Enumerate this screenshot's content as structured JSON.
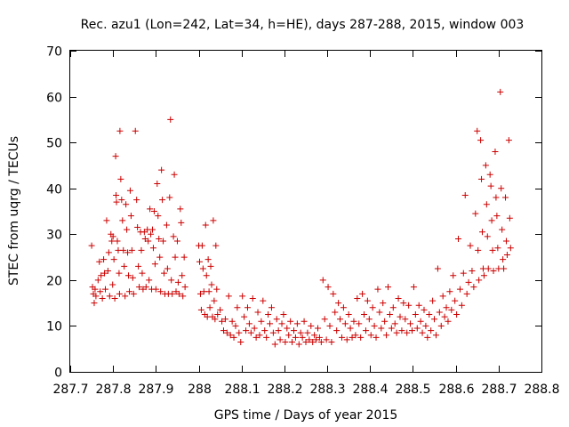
{
  "chart_data": {
    "type": "scatter",
    "title": "Rec. azu1 (Lon=242, Lat=34, h=HE), days 287-288, 2015, window 003",
    "xlabel": "GPS time / Days of year 2015",
    "ylabel": "STEC from uqrg / TECUs",
    "xlim": [
      287.7,
      288.8
    ],
    "ylim": [
      0,
      70
    ],
    "xticks": [
      "287.7",
      "287.8",
      "287.9",
      "288",
      "288.1",
      "288.2",
      "288.3",
      "288.4",
      "288.5",
      "288.6",
      "288.7",
      "288.8"
    ],
    "yticks": [
      "0",
      "10",
      "20",
      "30",
      "40",
      "50",
      "60",
      "70"
    ],
    "grid": false,
    "legend": "none",
    "marker": "plus",
    "series_color": "#cc0000",
    "points": [
      [
        287.75,
        27.5
      ],
      [
        287.752,
        18.5
      ],
      [
        287.754,
        17.0
      ],
      [
        287.756,
        15.0
      ],
      [
        287.758,
        18.0
      ],
      [
        287.76,
        16.5
      ],
      [
        287.765,
        20.0
      ],
      [
        287.768,
        24.0
      ],
      [
        287.77,
        17.5
      ],
      [
        287.772,
        21.0
      ],
      [
        287.775,
        16.0
      ],
      [
        287.778,
        24.5
      ],
      [
        287.78,
        21.5
      ],
      [
        287.782,
        18.0
      ],
      [
        287.785,
        33.0
      ],
      [
        287.788,
        22.0
      ],
      [
        287.79,
        26.0
      ],
      [
        287.792,
        16.5
      ],
      [
        287.795,
        30.0
      ],
      [
        287.797,
        28.5
      ],
      [
        287.799,
        19.0
      ],
      [
        287.8,
        29.5
      ],
      [
        287.802,
        24.5
      ],
      [
        287.804,
        16.0
      ],
      [
        287.806,
        47.0
      ],
      [
        287.807,
        38.5
      ],
      [
        287.808,
        37.0
      ],
      [
        287.81,
        28.5
      ],
      [
        287.812,
        26.5
      ],
      [
        287.814,
        21.5
      ],
      [
        287.815,
        17.0
      ],
      [
        287.816,
        52.5
      ],
      [
        287.818,
        42.0
      ],
      [
        287.82,
        37.5
      ],
      [
        287.822,
        33.0
      ],
      [
        287.824,
        26.5
      ],
      [
        287.826,
        23.0
      ],
      [
        287.828,
        16.5
      ],
      [
        287.83,
        36.5
      ],
      [
        287.832,
        31.0
      ],
      [
        287.834,
        26.0
      ],
      [
        287.836,
        21.0
      ],
      [
        287.838,
        17.5
      ],
      [
        287.84,
        39.5
      ],
      [
        287.842,
        34.0
      ],
      [
        287.844,
        26.5
      ],
      [
        287.846,
        20.5
      ],
      [
        287.848,
        17.0
      ],
      [
        287.852,
        52.5
      ],
      [
        287.855,
        37.5
      ],
      [
        287.857,
        31.5
      ],
      [
        287.859,
        23.0
      ],
      [
        287.861,
        18.5
      ],
      [
        287.864,
        30.5
      ],
      [
        287.866,
        26.5
      ],
      [
        287.868,
        21.5
      ],
      [
        287.87,
        18.0
      ],
      [
        287.873,
        30.5
      ],
      [
        287.875,
        29.0
      ],
      [
        287.877,
        18.5
      ],
      [
        287.88,
        31.0
      ],
      [
        287.882,
        28.5
      ],
      [
        287.884,
        20.0
      ],
      [
        287.886,
        35.5
      ],
      [
        287.888,
        30.0
      ],
      [
        287.89,
        18.0
      ],
      [
        287.892,
        31.0
      ],
      [
        287.894,
        27.0
      ],
      [
        287.896,
        35.0
      ],
      [
        287.898,
        23.5
      ],
      [
        287.9,
        18.0
      ],
      [
        287.903,
        41.0
      ],
      [
        287.905,
        34.0
      ],
      [
        287.907,
        29.0
      ],
      [
        287.909,
        25.0
      ],
      [
        287.911,
        17.5
      ],
      [
        287.913,
        44.0
      ],
      [
        287.915,
        37.5
      ],
      [
        287.917,
        28.5
      ],
      [
        287.919,
        21.5
      ],
      [
        287.921,
        17.0
      ],
      [
        287.925,
        32.0
      ],
      [
        287.927,
        22.5
      ],
      [
        287.929,
        17.0
      ],
      [
        287.932,
        38.0
      ],
      [
        287.934,
        55.0
      ],
      [
        287.936,
        20.0
      ],
      [
        287.938,
        17.0
      ],
      [
        287.941,
        29.5
      ],
      [
        287.943,
        43.0
      ],
      [
        287.945,
        25.0
      ],
      [
        287.947,
        17.5
      ],
      [
        287.95,
        28.5
      ],
      [
        287.952,
        19.5
      ],
      [
        287.954,
        17.0
      ],
      [
        287.957,
        35.5
      ],
      [
        287.959,
        32.5
      ],
      [
        287.961,
        21.0
      ],
      [
        287.963,
        16.5
      ],
      [
        287.966,
        25.0
      ],
      [
        287.968,
        18.5
      ],
      [
        288.0,
        27.5
      ],
      [
        288.002,
        24.0
      ],
      [
        288.004,
        17.0
      ],
      [
        288.006,
        13.5
      ],
      [
        288.008,
        27.5
      ],
      [
        288.01,
        22.5
      ],
      [
        288.012,
        17.5
      ],
      [
        288.014,
        12.5
      ],
      [
        288.016,
        32.0
      ],
      [
        288.018,
        21.0
      ],
      [
        288.02,
        12.0
      ],
      [
        288.022,
        24.5
      ],
      [
        288.024,
        17.5
      ],
      [
        288.026,
        14.0
      ],
      [
        288.028,
        23.0
      ],
      [
        288.03,
        19.0
      ],
      [
        288.032,
        12.0
      ],
      [
        288.034,
        33.0
      ],
      [
        288.036,
        15.5
      ],
      [
        288.038,
        11.5
      ],
      [
        288.04,
        27.5
      ],
      [
        288.042,
        18.0
      ],
      [
        288.044,
        12.5
      ],
      [
        288.05,
        13.5
      ],
      [
        288.054,
        11.0
      ],
      [
        288.058,
        9.0
      ],
      [
        288.062,
        11.5
      ],
      [
        288.066,
        8.5
      ],
      [
        288.07,
        16.5
      ],
      [
        288.074,
        8.0
      ],
      [
        288.078,
        11.0
      ],
      [
        288.082,
        7.5
      ],
      [
        288.086,
        10.0
      ],
      [
        288.09,
        14.0
      ],
      [
        288.094,
        8.5
      ],
      [
        288.098,
        6.5
      ],
      [
        288.102,
        16.5
      ],
      [
        288.106,
        12.0
      ],
      [
        288.11,
        9.0
      ],
      [
        288.114,
        14.0
      ],
      [
        288.118,
        10.5
      ],
      [
        288.122,
        8.5
      ],
      [
        288.126,
        16.0
      ],
      [
        288.13,
        9.5
      ],
      [
        288.134,
        7.5
      ],
      [
        288.138,
        13.0
      ],
      [
        288.142,
        8.0
      ],
      [
        288.146,
        11.0
      ],
      [
        288.15,
        15.5
      ],
      [
        288.154,
        9.0
      ],
      [
        288.158,
        7.5
      ],
      [
        288.162,
        12.5
      ],
      [
        288.166,
        10.5
      ],
      [
        288.17,
        14.0
      ],
      [
        288.174,
        8.5
      ],
      [
        288.178,
        6.0
      ],
      [
        288.182,
        11.5
      ],
      [
        288.186,
        9.0
      ],
      [
        288.19,
        7.0
      ],
      [
        288.194,
        10.5
      ],
      [
        288.198,
        12.5
      ],
      [
        288.202,
        6.5
      ],
      [
        288.206,
        9.5
      ],
      [
        288.21,
        8.0
      ],
      [
        288.214,
        11.0
      ],
      [
        288.218,
        6.5
      ],
      [
        288.222,
        9.0
      ],
      [
        288.226,
        7.5
      ],
      [
        288.23,
        10.5
      ],
      [
        288.234,
        6.0
      ],
      [
        288.238,
        8.5
      ],
      [
        288.242,
        7.5
      ],
      [
        288.246,
        11.0
      ],
      [
        288.25,
        6.5
      ],
      [
        288.254,
        8.5
      ],
      [
        288.258,
        7.0
      ],
      [
        288.262,
        10.0
      ],
      [
        288.266,
        6.5
      ],
      [
        288.27,
        8.0
      ],
      [
        288.274,
        7.0
      ],
      [
        288.278,
        9.5
      ],
      [
        288.282,
        7.5
      ],
      [
        288.286,
        6.5
      ],
      [
        288.29,
        20.0
      ],
      [
        288.294,
        11.5
      ],
      [
        288.298,
        7.0
      ],
      [
        288.302,
        18.5
      ],
      [
        288.306,
        10.0
      ],
      [
        288.31,
        6.5
      ],
      [
        288.314,
        17.0
      ],
      [
        288.318,
        13.0
      ],
      [
        288.322,
        9.0
      ],
      [
        288.326,
        15.0
      ],
      [
        288.33,
        11.5
      ],
      [
        288.334,
        7.5
      ],
      [
        288.338,
        14.0
      ],
      [
        288.342,
        10.5
      ],
      [
        288.346,
        7.0
      ],
      [
        288.35,
        12.5
      ],
      [
        288.354,
        9.5
      ],
      [
        288.358,
        7.5
      ],
      [
        288.362,
        11.0
      ],
      [
        288.366,
        8.0
      ],
      [
        288.37,
        16.0
      ],
      [
        288.374,
        10.5
      ],
      [
        288.378,
        7.5
      ],
      [
        288.382,
        17.0
      ],
      [
        288.386,
        12.5
      ],
      [
        288.39,
        9.0
      ],
      [
        288.394,
        15.5
      ],
      [
        288.398,
        11.5
      ],
      [
        288.402,
        8.0
      ],
      [
        288.406,
        14.0
      ],
      [
        288.41,
        10.0
      ],
      [
        288.414,
        7.5
      ],
      [
        288.418,
        18.0
      ],
      [
        288.422,
        13.0
      ],
      [
        288.426,
        9.5
      ],
      [
        288.43,
        15.0
      ],
      [
        288.434,
        11.0
      ],
      [
        288.438,
        8.0
      ],
      [
        288.442,
        18.5
      ],
      [
        288.446,
        12.5
      ],
      [
        288.45,
        9.5
      ],
      [
        288.454,
        14.0
      ],
      [
        288.458,
        10.5
      ],
      [
        288.462,
        8.5
      ],
      [
        288.466,
        16.0
      ],
      [
        288.47,
        12.0
      ],
      [
        288.474,
        9.0
      ],
      [
        288.478,
        15.0
      ],
      [
        288.482,
        11.5
      ],
      [
        288.486,
        8.5
      ],
      [
        288.49,
        14.5
      ],
      [
        288.494,
        10.5
      ],
      [
        288.498,
        9.0
      ],
      [
        288.502,
        18.5
      ],
      [
        288.506,
        12.5
      ],
      [
        288.51,
        9.5
      ],
      [
        288.514,
        14.5
      ],
      [
        288.518,
        11.0
      ],
      [
        288.522,
        8.5
      ],
      [
        288.526,
        13.5
      ],
      [
        288.53,
        10.0
      ],
      [
        288.534,
        7.5
      ],
      [
        288.538,
        12.5
      ],
      [
        288.542,
        9.0
      ],
      [
        288.546,
        15.5
      ],
      [
        288.55,
        11.5
      ],
      [
        288.554,
        8.0
      ],
      [
        288.558,
        22.5
      ],
      [
        288.562,
        13.0
      ],
      [
        288.566,
        10.0
      ],
      [
        288.57,
        16.5
      ],
      [
        288.574,
        12.0
      ],
      [
        288.578,
        14.0
      ],
      [
        288.582,
        11.0
      ],
      [
        288.586,
        17.5
      ],
      [
        288.59,
        13.5
      ],
      [
        288.594,
        21.0
      ],
      [
        288.598,
        15.5
      ],
      [
        288.602,
        12.5
      ],
      [
        288.606,
        29.0
      ],
      [
        288.61,
        18.0
      ],
      [
        288.614,
        14.5
      ],
      [
        288.618,
        21.5
      ],
      [
        288.622,
        38.5
      ],
      [
        288.626,
        17.0
      ],
      [
        288.63,
        19.5
      ],
      [
        288.634,
        27.5
      ],
      [
        288.638,
        22.0
      ],
      [
        288.642,
        18.5
      ],
      [
        288.646,
        34.5
      ],
      [
        288.65,
        52.5
      ],
      [
        288.652,
        26.5
      ],
      [
        288.654,
        20.0
      ],
      [
        288.658,
        50.5
      ],
      [
        288.66,
        42.0
      ],
      [
        288.662,
        30.5
      ],
      [
        288.664,
        22.5
      ],
      [
        288.666,
        21.0
      ],
      [
        288.67,
        45.0
      ],
      [
        288.672,
        36.5
      ],
      [
        288.674,
        29.5
      ],
      [
        288.676,
        22.5
      ],
      [
        288.68,
        43.0
      ],
      [
        288.682,
        40.5
      ],
      [
        288.684,
        33.0
      ],
      [
        288.686,
        26.5
      ],
      [
        288.688,
        22.0
      ],
      [
        288.692,
        48.0
      ],
      [
        288.694,
        38.0
      ],
      [
        288.696,
        34.0
      ],
      [
        288.698,
        27.0
      ],
      [
        288.7,
        22.5
      ],
      [
        288.704,
        61.0
      ],
      [
        288.706,
        40.0
      ],
      [
        288.708,
        31.0
      ],
      [
        288.71,
        24.5
      ],
      [
        288.712,
        22.5
      ],
      [
        288.716,
        38.0
      ],
      [
        288.718,
        28.5
      ],
      [
        288.72,
        25.5
      ],
      [
        288.724,
        50.5
      ],
      [
        288.726,
        33.5
      ],
      [
        288.728,
        27.0
      ]
    ]
  }
}
